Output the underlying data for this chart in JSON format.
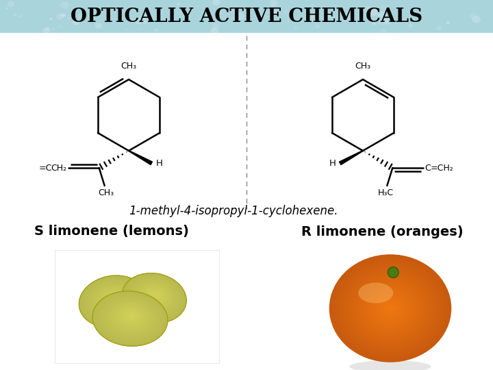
{
  "title": "OPTICALLY ACTIVE CHEMICALS",
  "title_bg": "#aad4dc",
  "subtitle": "1-methyl-4-isopropyl-1-cyclohexene.",
  "label_left": "S limonene (lemons)",
  "label_right": "R limonene (oranges)",
  "title_fontsize": 20,
  "subtitle_fontsize": 12,
  "label_fontsize": 14,
  "bg_color": "#ffffff",
  "fig_w": 7.2,
  "fig_h": 5.4,
  "dpi": 100
}
